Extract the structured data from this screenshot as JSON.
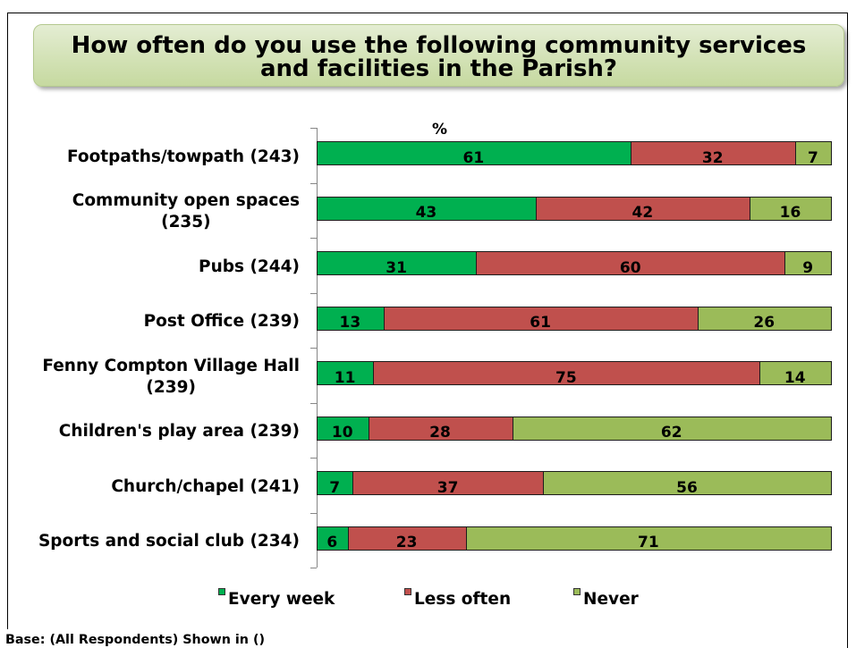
{
  "chart_data": {
    "type": "bar",
    "orientation": "horizontal",
    "stacked": true,
    "title": "How often do you use the following community services\nand facilities in the Parish?",
    "unit_label": "%",
    "categories": [
      "Footpaths/towpath (243)",
      "Community open spaces\n(235)",
      "Pubs (244)",
      "Post Office (239)",
      "Fenny Compton Village Hall\n(239)",
      "Children's play area (239)",
      "Church/chapel (241)",
      "Sports and social club (234)"
    ],
    "series": [
      {
        "name": "Every week",
        "color": "#00b050",
        "values": [
          61,
          43,
          31,
          13,
          11,
          10,
          7,
          6
        ]
      },
      {
        "name": "Less often",
        "color": "#c0504d",
        "values": [
          32,
          42,
          60,
          61,
          75,
          28,
          37,
          23
        ]
      },
      {
        "name": "Never",
        "color": "#9bbb59",
        "values": [
          7,
          16,
          9,
          26,
          14,
          62,
          56,
          71
        ]
      }
    ],
    "xlim": [
      0,
      100
    ],
    "data_labels": true,
    "grid": false,
    "legend": "bottom",
    "note": "Base: (All Respondents) Shown in ()"
  }
}
